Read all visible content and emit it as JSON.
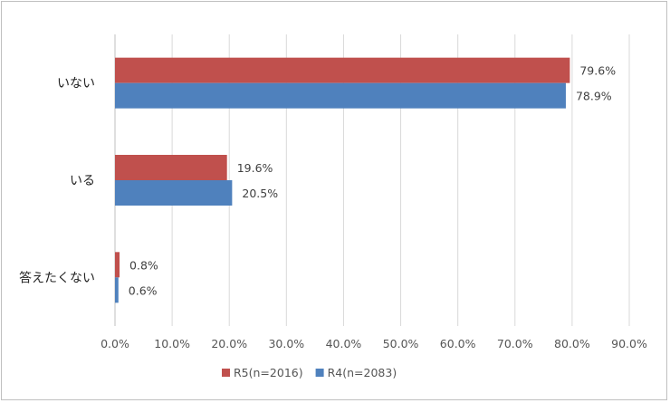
{
  "chart_data": {
    "type": "bar",
    "orientation": "horizontal",
    "categories": [
      "いない",
      "いる",
      "答えたくない"
    ],
    "series": [
      {
        "name": "R5(n=2016)",
        "color": "#c0504d",
        "values": [
          79.6,
          19.6,
          0.8
        ],
        "labels": [
          "79.6%",
          "19.6%",
          "0.8%"
        ]
      },
      {
        "name": "R4(n=2083)",
        "color": "#4f81bd",
        "values": [
          78.9,
          20.5,
          0.6
        ],
        "labels": [
          "78.9%",
          "20.5%",
          "0.6%"
        ]
      }
    ],
    "xlim": [
      0,
      90
    ],
    "x_ticks": [
      "0.0%",
      "10.0%",
      "20.0%",
      "30.0%",
      "40.0%",
      "50.0%",
      "60.0%",
      "70.0%",
      "80.0%",
      "90.0%"
    ],
    "grid": "vertical",
    "legend": "bottom"
  }
}
